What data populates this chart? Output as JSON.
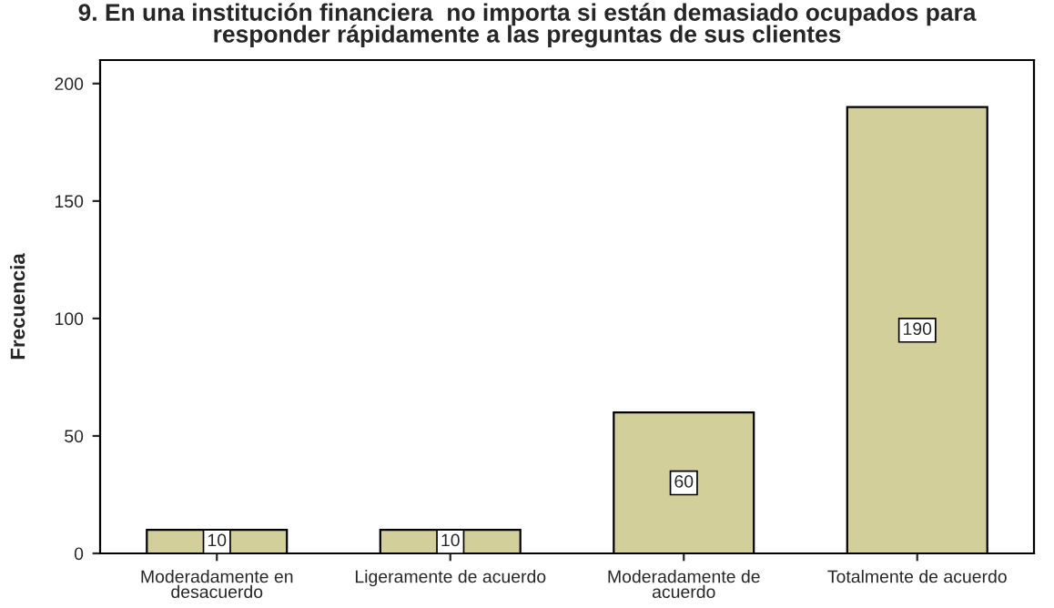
{
  "chart_data": {
    "type": "bar",
    "title": "9. En una institución financiera  no importa si están demasiado ocupados para\nresponder rápidamente a las preguntas de sus clientes",
    "ylabel": "Frecuencia",
    "categories": [
      "Moderadamente en\ndesacuerdo",
      "Ligeramente de acuerdo",
      "Moderadamente de\nacuerdo",
      "Totalmente de acuerdo"
    ],
    "values": [
      10,
      10,
      60,
      190
    ],
    "color": "#d2cf9a",
    "ylim": [
      0,
      210
    ],
    "yticks": [
      0,
      50,
      100,
      150,
      200
    ],
    "grid": false,
    "legend": false,
    "data_labels": true
  }
}
